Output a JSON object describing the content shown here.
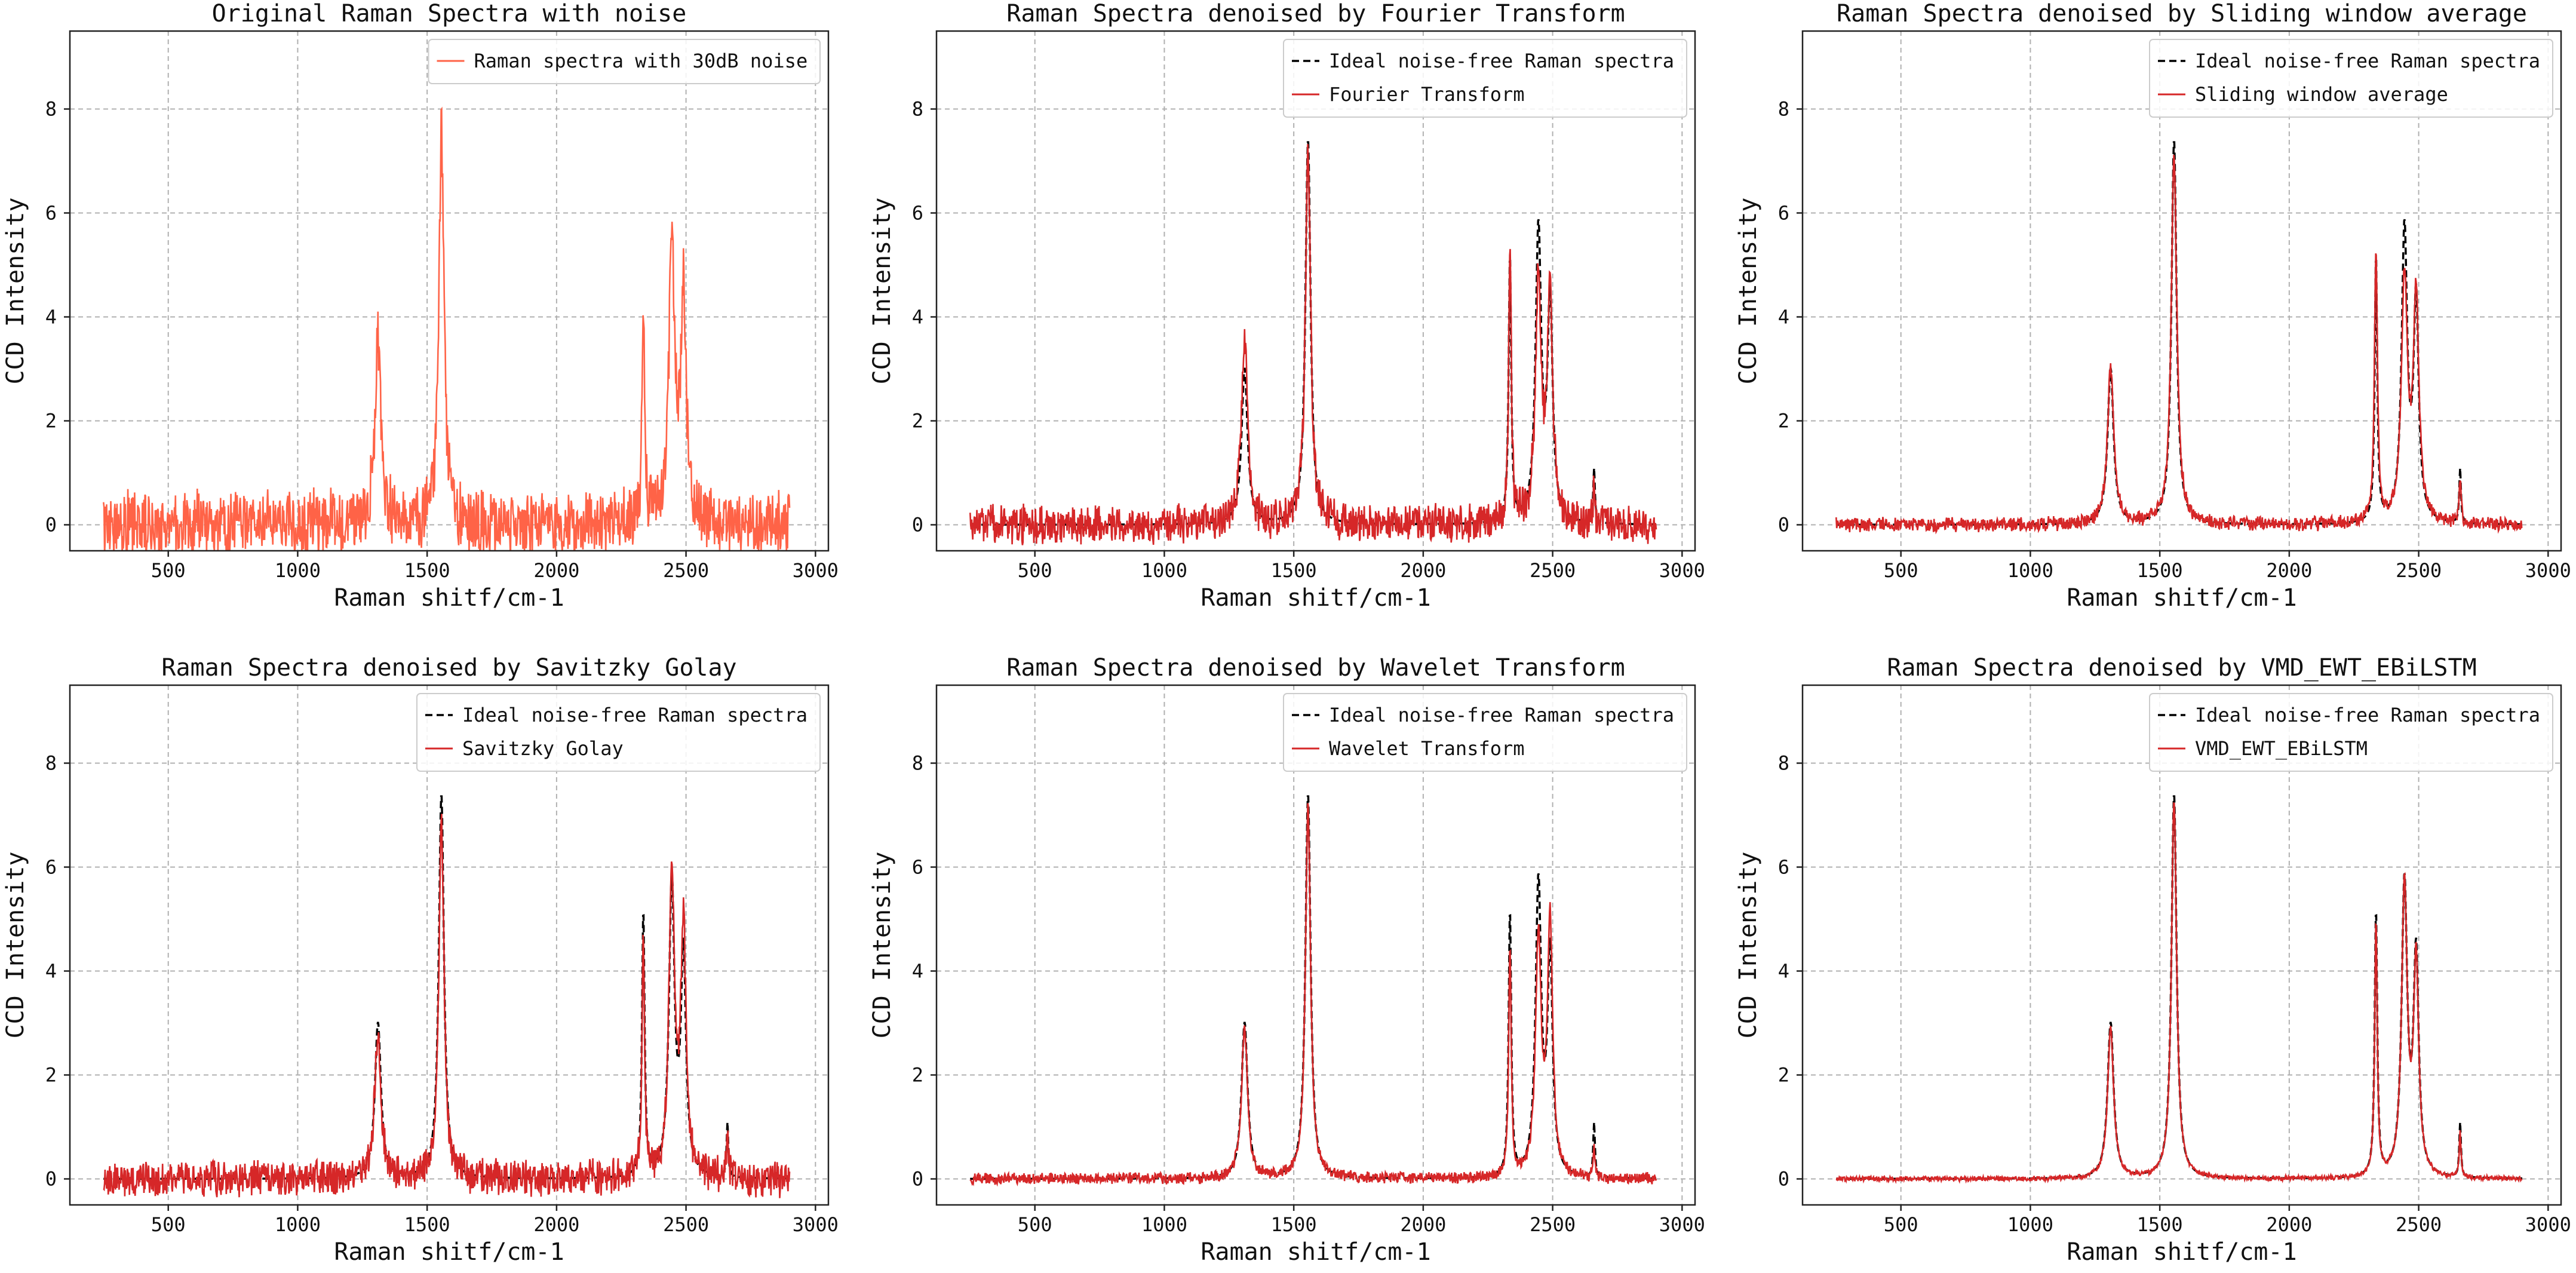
{
  "colors": {
    "noisy": "#ff6347",
    "denoised": "#d62728",
    "ideal": "#000000"
  },
  "chart_data": [
    {
      "type": "line",
      "title": "Original Raman Spectra with noise",
      "xlabel": "Raman shitf/cm-1",
      "ylabel": "CCD Intensity",
      "xlim": [
        120,
        3050
      ],
      "ylim": [
        -0.5,
        9.5
      ],
      "xticks": [
        500,
        1000,
        1500,
        2000,
        2500,
        3000
      ],
      "yticks": [
        0,
        2,
        4,
        6,
        8
      ],
      "grid": true,
      "legend_position": "top-right",
      "noise_amplitude": 0.55,
      "series": [
        {
          "name": "Raman spectra with 30dB noise",
          "style": "solid",
          "color": "#ff6347",
          "role": "noisy",
          "peaks": [
            [
              1310,
              3.5,
              14
            ],
            [
              1555,
              7.6,
              12
            ],
            [
              2335,
              4.2,
              6
            ],
            [
              2445,
              5.6,
              13
            ],
            [
              2490,
              4.4,
              12
            ]
          ]
        }
      ]
    },
    {
      "type": "line",
      "title": "Raman Spectra denoised  by Fourier Transform",
      "xlabel": "Raman shitf/cm-1",
      "ylabel": "CCD Intensity",
      "xlim": [
        120,
        3050
      ],
      "ylim": [
        -0.5,
        9.5
      ],
      "xticks": [
        500,
        1000,
        1500,
        2000,
        2500,
        3000
      ],
      "yticks": [
        0,
        2,
        4,
        6,
        8
      ],
      "grid": true,
      "legend_position": "top-right",
      "noise_amplitude": 0.32,
      "series": [
        {
          "name": "Ideal noise-free Raman spectra",
          "style": "dashed",
          "color": "#000000",
          "role": "ideal",
          "peaks": [
            [
              1310,
              3.0,
              14
            ],
            [
              1555,
              7.4,
              12
            ],
            [
              2335,
              5.1,
              6
            ],
            [
              2445,
              5.6,
              13
            ],
            [
              2490,
              4.2,
              12
            ],
            [
              2660,
              1.05,
              4
            ]
          ]
        },
        {
          "name": "Fourier Transform",
          "style": "solid",
          "color": "#d62728",
          "role": "denoised",
          "peaks": [
            [
              1310,
              3.6,
              14
            ],
            [
              1555,
              7.3,
              12
            ],
            [
              2335,
              5.4,
              6
            ],
            [
              2445,
              4.8,
              13
            ],
            [
              2490,
              4.4,
              12
            ],
            [
              2660,
              0.9,
              4
            ]
          ]
        }
      ]
    },
    {
      "type": "line",
      "title": "Raman Spectra denoised  by Sliding window average",
      "xlabel": "Raman shitf/cm-1",
      "ylabel": "CCD Intensity",
      "xlim": [
        120,
        3050
      ],
      "ylim": [
        -0.5,
        9.5
      ],
      "xticks": [
        500,
        1000,
        1500,
        2000,
        2500,
        3000
      ],
      "yticks": [
        0,
        2,
        4,
        6,
        8
      ],
      "grid": true,
      "legend_position": "top-right",
      "noise_amplitude": 0.12,
      "series": [
        {
          "name": "Ideal noise-free Raman spectra",
          "style": "dashed",
          "color": "#000000",
          "role": "ideal",
          "peaks": [
            [
              1310,
              3.0,
              14
            ],
            [
              1555,
              7.4,
              12
            ],
            [
              2335,
              5.1,
              6
            ],
            [
              2445,
              5.6,
              13
            ],
            [
              2490,
              4.2,
              12
            ],
            [
              2660,
              1.05,
              4
            ]
          ]
        },
        {
          "name": "Sliding window average",
          "style": "solid",
          "color": "#d62728",
          "role": "denoised",
          "peaks": [
            [
              1310,
              3.0,
              15
            ],
            [
              1555,
              7.1,
              13
            ],
            [
              2335,
              5.2,
              7
            ],
            [
              2445,
              4.7,
              14
            ],
            [
              2490,
              4.3,
              13
            ],
            [
              2660,
              0.8,
              5
            ]
          ]
        }
      ]
    },
    {
      "type": "line",
      "title": "Raman Spectra denoised  by Savitzky Golay",
      "xlabel": "Raman shitf/cm-1",
      "ylabel": "CCD Intensity",
      "xlim": [
        120,
        3050
      ],
      "ylim": [
        -0.5,
        9.5
      ],
      "xticks": [
        500,
        1000,
        1500,
        2000,
        2500,
        3000
      ],
      "yticks": [
        0,
        2,
        4,
        6,
        8
      ],
      "grid": true,
      "legend_position": "top-right",
      "noise_amplitude": 0.3,
      "series": [
        {
          "name": "Ideal noise-free Raman spectra",
          "style": "dashed",
          "color": "#000000",
          "role": "ideal",
          "peaks": [
            [
              1310,
              3.0,
              14
            ],
            [
              1555,
              7.4,
              12
            ],
            [
              2335,
              5.1,
              6
            ],
            [
              2445,
              5.6,
              13
            ],
            [
              2490,
              4.2,
              12
            ],
            [
              2660,
              1.05,
              4
            ]
          ]
        },
        {
          "name": "Savitzky Golay",
          "style": "solid",
          "color": "#d62728",
          "role": "denoised",
          "peaks": [
            [
              1310,
              2.9,
              14
            ],
            [
              1555,
              7.0,
              12
            ],
            [
              2335,
              4.6,
              6
            ],
            [
              2445,
              5.8,
              13
            ],
            [
              2490,
              4.8,
              12
            ],
            [
              2660,
              0.9,
              4
            ]
          ]
        }
      ]
    },
    {
      "type": "line",
      "title": "Raman Spectra denoised  by Wavelet Transform",
      "xlabel": "Raman shitf/cm-1",
      "ylabel": "CCD Intensity",
      "xlim": [
        120,
        3050
      ],
      "ylim": [
        -0.5,
        9.5
      ],
      "xticks": [
        500,
        1000,
        1500,
        2000,
        2500,
        3000
      ],
      "yticks": [
        0,
        2,
        4,
        6,
        8
      ],
      "grid": true,
      "legend_position": "top-right",
      "noise_amplitude": 0.1,
      "series": [
        {
          "name": "Ideal noise-free Raman spectra",
          "style": "dashed",
          "color": "#000000",
          "role": "ideal",
          "peaks": [
            [
              1310,
              3.0,
              14
            ],
            [
              1555,
              7.4,
              12
            ],
            [
              2335,
              5.1,
              6
            ],
            [
              2445,
              5.6,
              13
            ],
            [
              2490,
              4.2,
              12
            ],
            [
              2660,
              1.05,
              4
            ]
          ]
        },
        {
          "name": "Wavelet Transform",
          "style": "solid",
          "color": "#d62728",
          "role": "denoised",
          "peaks": [
            [
              1310,
              2.9,
              14
            ],
            [
              1555,
              7.2,
              12
            ],
            [
              2335,
              4.4,
              6
            ],
            [
              2445,
              4.6,
              13
            ],
            [
              2490,
              4.9,
              12
            ],
            [
              2660,
              0.6,
              4
            ]
          ]
        }
      ]
    },
    {
      "type": "line",
      "title": "Raman Spectra denoised  by VMD_EWT_EBiLSTM",
      "xlabel": "Raman shitf/cm-1",
      "ylabel": "CCD Intensity",
      "xlim": [
        120,
        3050
      ],
      "ylim": [
        -0.5,
        9.5
      ],
      "xticks": [
        500,
        1000,
        1500,
        2000,
        2500,
        3000
      ],
      "yticks": [
        0,
        2,
        4,
        6,
        8
      ],
      "grid": true,
      "legend_position": "top-right",
      "noise_amplitude": 0.04,
      "series": [
        {
          "name": "Ideal noise-free Raman spectra",
          "style": "dashed",
          "color": "#000000",
          "role": "ideal",
          "peaks": [
            [
              1310,
              3.0,
              14
            ],
            [
              1555,
              7.4,
              12
            ],
            [
              2335,
              5.1,
              6
            ],
            [
              2445,
              5.6,
              13
            ],
            [
              2490,
              4.2,
              12
            ],
            [
              2660,
              1.05,
              4
            ]
          ]
        },
        {
          "name": "VMD_EWT_EBiLSTM",
          "style": "solid",
          "color": "#d62728",
          "role": "denoised",
          "peaks": [
            [
              1310,
              2.9,
              14
            ],
            [
              1555,
              7.3,
              12
            ],
            [
              2335,
              4.9,
              6
            ],
            [
              2445,
              5.6,
              13
            ],
            [
              2490,
              4.1,
              12
            ],
            [
              2660,
              0.9,
              4
            ]
          ]
        }
      ]
    }
  ]
}
